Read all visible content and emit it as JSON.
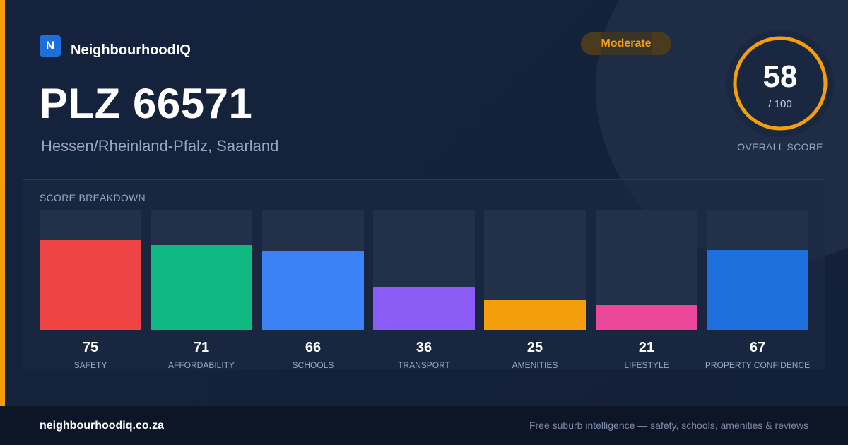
{
  "brand": {
    "logo_letter": "N",
    "name": "NeighbourhoodIQ"
  },
  "badge": {
    "label": "Moderate",
    "color": "#f59e0b"
  },
  "location": {
    "title": "PLZ 66571",
    "region": "Hessen/Rheinland-Pfalz, Saarland"
  },
  "overall": {
    "score": "58",
    "max_label": "/ 100",
    "label": "OVERALL SCORE",
    "fraction": 0.58,
    "ring_color": "#f59e0b"
  },
  "breakdown": {
    "title": "SCORE BREAKDOWN",
    "items": [
      {
        "label": "SAFETY",
        "value": "75",
        "score": 75,
        "color": "#ef4444"
      },
      {
        "label": "AFFORDABILITY",
        "value": "71",
        "score": 71,
        "color": "#10b981"
      },
      {
        "label": "SCHOOLS",
        "value": "66",
        "score": 66,
        "color": "#3b82f6"
      },
      {
        "label": "TRANSPORT",
        "value": "36",
        "score": 36,
        "color": "#8b5cf6"
      },
      {
        "label": "AMENITIES",
        "value": "25",
        "score": 25,
        "color": "#f59e0b"
      },
      {
        "label": "LIFESTYLE",
        "value": "21",
        "score": 21,
        "color": "#ec4899"
      },
      {
        "label": "PROPERTY CONFIDENCE",
        "value": "67",
        "score": 67,
        "color": "#1d6fdc"
      }
    ]
  },
  "footer": {
    "site": "neighbourhoodiq.co.za",
    "tagline": "Free suburb intelligence — safety, schools, amenities & reviews"
  }
}
